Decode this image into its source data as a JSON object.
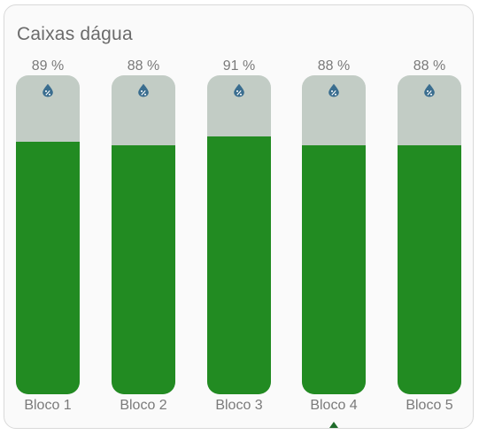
{
  "card": {
    "title": "Caixas dágua"
  },
  "colors": {
    "fill": "#228b22",
    "empty": "#c2ccc5",
    "drop_icon": "#3a6d8f",
    "marker": "#1f6b2a"
  },
  "tanks": [
    {
      "label": "Bloco 1",
      "percent_text": "89 %",
      "level": 0.89,
      "icon": "water-percent-icon"
    },
    {
      "label": "Bloco 2",
      "percent_text": "88 %",
      "level": 0.88,
      "icon": "water-percent-icon"
    },
    {
      "label": "Bloco 3",
      "percent_text": "91 %",
      "level": 0.91,
      "icon": "water-percent-icon"
    },
    {
      "label": "Bloco 4",
      "percent_text": "88 %",
      "level": 0.88,
      "icon": "water-percent-icon",
      "selected": true
    },
    {
      "label": "Bloco 5",
      "percent_text": "88 %",
      "level": 0.88,
      "icon": "water-percent-icon"
    }
  ]
}
